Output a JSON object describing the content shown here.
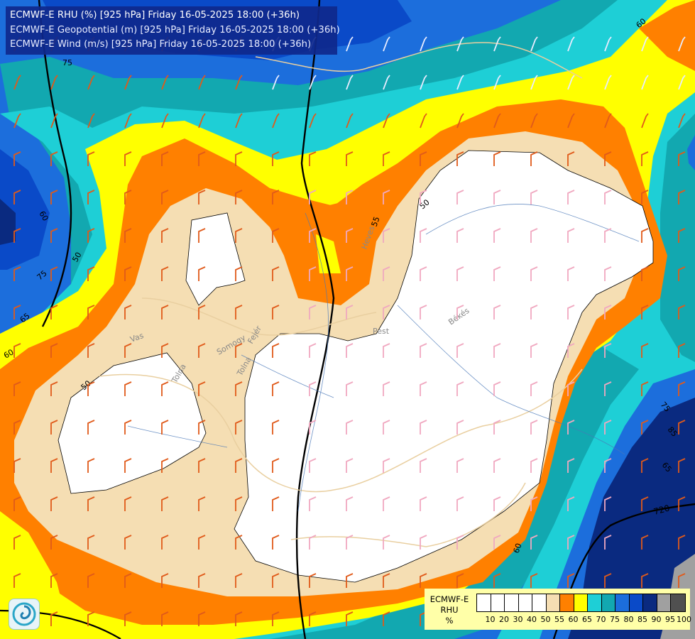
{
  "header": {
    "line1": "ECMWF-E RHU (%) [925 hPa] Friday 16-05-2025 18:00 (+36h)",
    "line2": "ECMWF-E Geopotential (m) [925 hPa] Friday 16-05-2025 18:00 (+36h)",
    "line3": "ECMWF-E Wind (m/s) [925 hPa] Friday 16-05-2025 18:00 (+36h)"
  },
  "legend": {
    "model": "ECMWF-E",
    "variable": "RHU",
    "unit": "%",
    "levels": [
      "10",
      "20",
      "30",
      "40",
      "50",
      "55",
      "60",
      "65",
      "70",
      "75",
      "80",
      "85",
      "90",
      "95",
      "100"
    ],
    "colors": [
      "#ffffff",
      "#ffffff",
      "#ffffff",
      "#ffffff",
      "#ffffff",
      "#f5deb3",
      "#ff8000",
      "#ffff00",
      "#1ecfd6",
      "#12a8b0",
      "#1c6edc",
      "#0a4ac8",
      "#0a2a80",
      "#a0a0a0",
      "#505050"
    ]
  },
  "contour_labels": [
    "75",
    "60",
    "50",
    "55",
    "60",
    "75",
    "50",
    "65",
    "60",
    "75",
    "85",
    "65",
    "60",
    "720",
    "60",
    "50",
    "65",
    "75",
    "60",
    "50"
  ],
  "region_labels": [
    "Vas",
    "Somogy",
    "Tolna",
    "Fejér",
    "Heves",
    "Pest",
    "Békés",
    "Tolna"
  ],
  "colors": {
    "white_zone": "#ffffff",
    "wheat_zone": "#f5deb3",
    "orange_zone": "#ff8000",
    "yellow_zone": "#ffff00",
    "cyan_zone": "#1ecfd6",
    "teal_zone": "#12a8b0",
    "blue_zone": "#1c6edc",
    "dark_blue_zone": "#0a2a80",
    "wind_barb_light": "#f0a8c0",
    "wind_barb_orange": "#e05a1a",
    "isohypse": "#000000"
  }
}
